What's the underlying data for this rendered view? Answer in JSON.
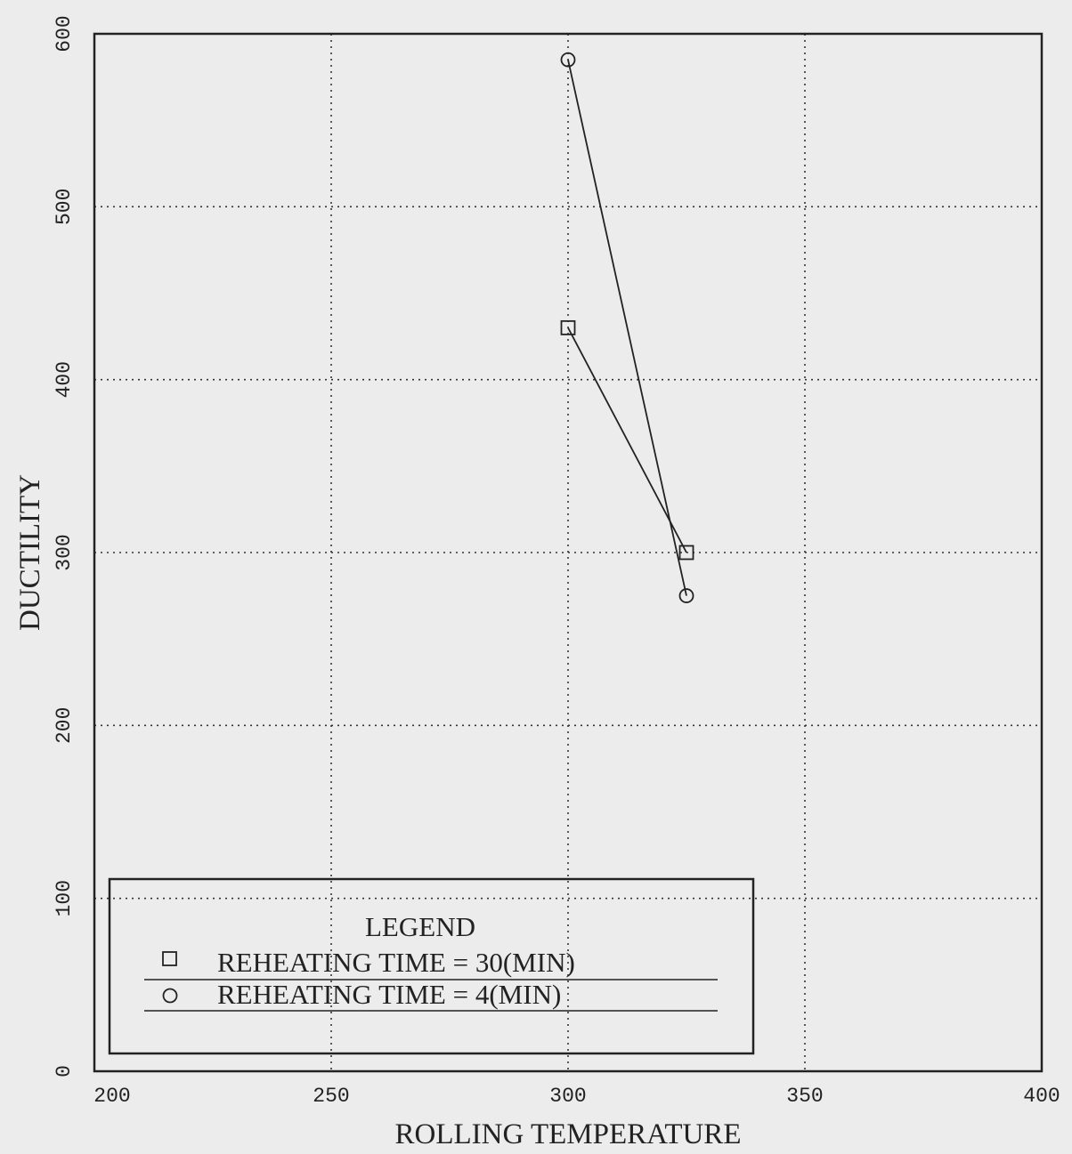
{
  "chart_data": {
    "type": "line",
    "title": "",
    "xlabel": "ROLLING TEMPERATURE",
    "ylabel": "DUCTILITY",
    "xlim": [
      200,
      400
    ],
    "ylim": [
      0,
      600
    ],
    "xticks": [
      "200",
      "250",
      "300",
      "350",
      "400"
    ],
    "yticks": [
      "0",
      "100",
      "200",
      "300",
      "400",
      "500",
      "600"
    ],
    "grid": true,
    "legend_placement": "bottom-left",
    "legend_title": "LEGEND",
    "series": [
      {
        "name": "REHEATING TIME = 30(MIN)",
        "marker": "square",
        "x": [
          300,
          325
        ],
        "y": [
          430,
          300
        ]
      },
      {
        "name": "REHEATING TIME = 4(MIN)",
        "marker": "circle",
        "x": [
          300,
          325
        ],
        "y": [
          585,
          275
        ]
      }
    ],
    "colors": {
      "line": "#222222",
      "grid": "#333333",
      "background": "#ececec"
    }
  }
}
